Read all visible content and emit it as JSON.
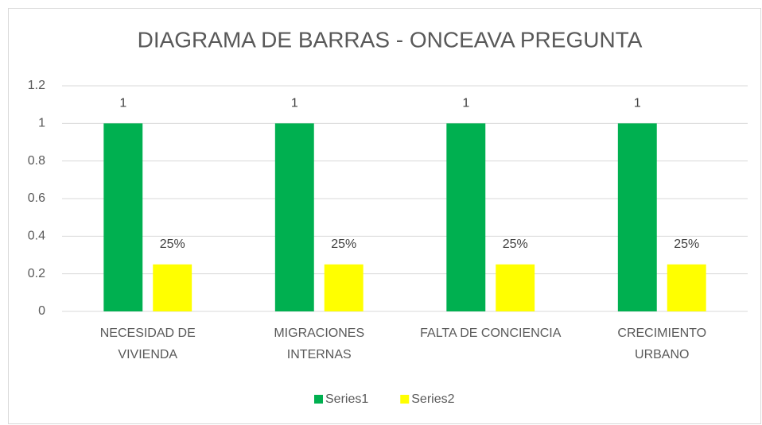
{
  "chart_data": {
    "type": "bar",
    "title": "DIAGRAMA DE BARRAS - ONCEAVA PREGUNTA",
    "categories": [
      "NECESIDAD DE VIVIENDA",
      "MIGRACIONES INTERNAS",
      "FALTA DE CONCIENCIA",
      "CRECIMIENTO URBANO"
    ],
    "series": [
      {
        "name": "Series1",
        "color": "#00b050",
        "values": [
          1,
          1,
          1,
          1
        ]
      },
      {
        "name": "Series2",
        "color": "#ffff00",
        "values": [
          0.25,
          0.25,
          0.25,
          0.25
        ],
        "value_labels": [
          "25%",
          "25%",
          "25%",
          "25%"
        ]
      }
    ],
    "ylim": [
      0,
      1.2
    ],
    "yticks": [
      0,
      0.2,
      0.4,
      0.6,
      0.8,
      1,
      1.2
    ],
    "grid": true,
    "legend": "bottom"
  }
}
